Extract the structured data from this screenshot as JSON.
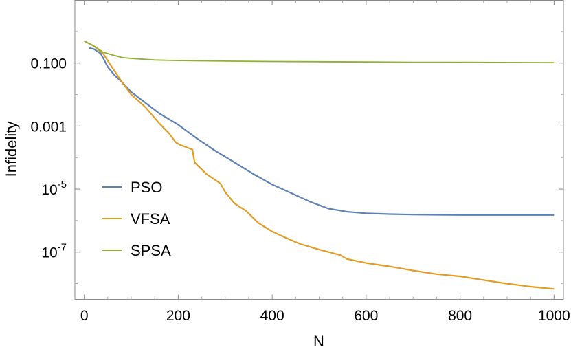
{
  "chart_data": {
    "type": "line",
    "title": "",
    "xlabel": "N",
    "ylabel": "Infidelity",
    "xlim": [
      -20,
      1020
    ],
    "ylim_log10": [
      -8.5,
      0.99
    ],
    "y_scale": "log",
    "grid": false,
    "legend_position": "bottom-left",
    "x_ticks": [
      {
        "value": 0,
        "label": "0"
      },
      {
        "value": 200,
        "label": "200"
      },
      {
        "value": 400,
        "label": "400"
      },
      {
        "value": 600,
        "label": "600"
      },
      {
        "value": 800,
        "label": "800"
      },
      {
        "value": 1000,
        "label": "1000"
      }
    ],
    "y_ticks": [
      {
        "value": 0.1,
        "log10": -1,
        "base": "0.100",
        "exp": ""
      },
      {
        "value": 0.001,
        "log10": -3,
        "base": "0.001",
        "exp": ""
      },
      {
        "value": 1e-05,
        "log10": -5,
        "base": "10",
        "exp": "-5"
      },
      {
        "value": 1e-07,
        "log10": -7,
        "base": "10",
        "exp": "-7"
      }
    ],
    "series": [
      {
        "name": "PSO",
        "color": "#5e81b5",
        "points": [
          [
            10,
            0.3
          ],
          [
            20,
            0.28
          ],
          [
            35,
            0.2
          ],
          [
            50,
            0.075
          ],
          [
            65,
            0.04
          ],
          [
            80,
            0.025
          ],
          [
            100,
            0.012
          ],
          [
            130,
            0.0055
          ],
          [
            160,
            0.0025
          ],
          [
            200,
            0.0011
          ],
          [
            240,
            0.0004
          ],
          [
            280,
            0.00016
          ],
          [
            320,
            7e-05
          ],
          [
            360,
            3e-05
          ],
          [
            400,
            1.4e-05
          ],
          [
            440,
            7.5e-06
          ],
          [
            480,
            4e-06
          ],
          [
            520,
            2.4e-06
          ],
          [
            560,
            1.9e-06
          ],
          [
            600,
            1.7e-06
          ],
          [
            650,
            1.6e-06
          ],
          [
            700,
            1.55e-06
          ],
          [
            800,
            1.5e-06
          ],
          [
            900,
            1.5e-06
          ],
          [
            1000,
            1.5e-06
          ]
        ]
      },
      {
        "name": "VFSA",
        "color": "#e19c24",
        "points": [
          [
            0,
            0.5
          ],
          [
            20,
            0.35
          ],
          [
            40,
            0.2
          ],
          [
            60,
            0.07
          ],
          [
            80,
            0.025
          ],
          [
            100,
            0.01
          ],
          [
            130,
            0.004
          ],
          [
            160,
            0.0012
          ],
          [
            180,
            0.0006
          ],
          [
            195,
            0.0003
          ],
          [
            205,
            0.00025
          ],
          [
            230,
            0.00018
          ],
          [
            235,
            7e-05
          ],
          [
            260,
            3e-05
          ],
          [
            290,
            1.5e-05
          ],
          [
            300,
            8e-06
          ],
          [
            320,
            3.5e-06
          ],
          [
            345,
            2e-06
          ],
          [
            360,
            1.2e-06
          ],
          [
            370,
            8.5e-07
          ],
          [
            400,
            4.5e-07
          ],
          [
            430,
            2.8e-07
          ],
          [
            460,
            1.8e-07
          ],
          [
            500,
            1.2e-07
          ],
          [
            545,
            8e-08
          ],
          [
            560,
            6e-08
          ],
          [
            600,
            4.5e-08
          ],
          [
            650,
            3.5e-08
          ],
          [
            700,
            2.6e-08
          ],
          [
            750,
            2e-08
          ],
          [
            800,
            1.7e-08
          ],
          [
            850,
            1.3e-08
          ],
          [
            900,
            1e-08
          ],
          [
            950,
            8e-09
          ],
          [
            1000,
            6.8e-09
          ]
        ]
      },
      {
        "name": "SPSA",
        "color": "#8fb032",
        "points": [
          [
            0,
            0.5
          ],
          [
            20,
            0.35
          ],
          [
            40,
            0.22
          ],
          [
            60,
            0.18
          ],
          [
            80,
            0.15
          ],
          [
            100,
            0.14
          ],
          [
            150,
            0.125
          ],
          [
            200,
            0.12
          ],
          [
            300,
            0.115
          ],
          [
            400,
            0.112
          ],
          [
            500,
            0.11
          ],
          [
            600,
            0.108
          ],
          [
            700,
            0.106
          ],
          [
            800,
            0.105
          ],
          [
            900,
            0.104
          ],
          [
            1000,
            0.103
          ]
        ]
      }
    ]
  }
}
